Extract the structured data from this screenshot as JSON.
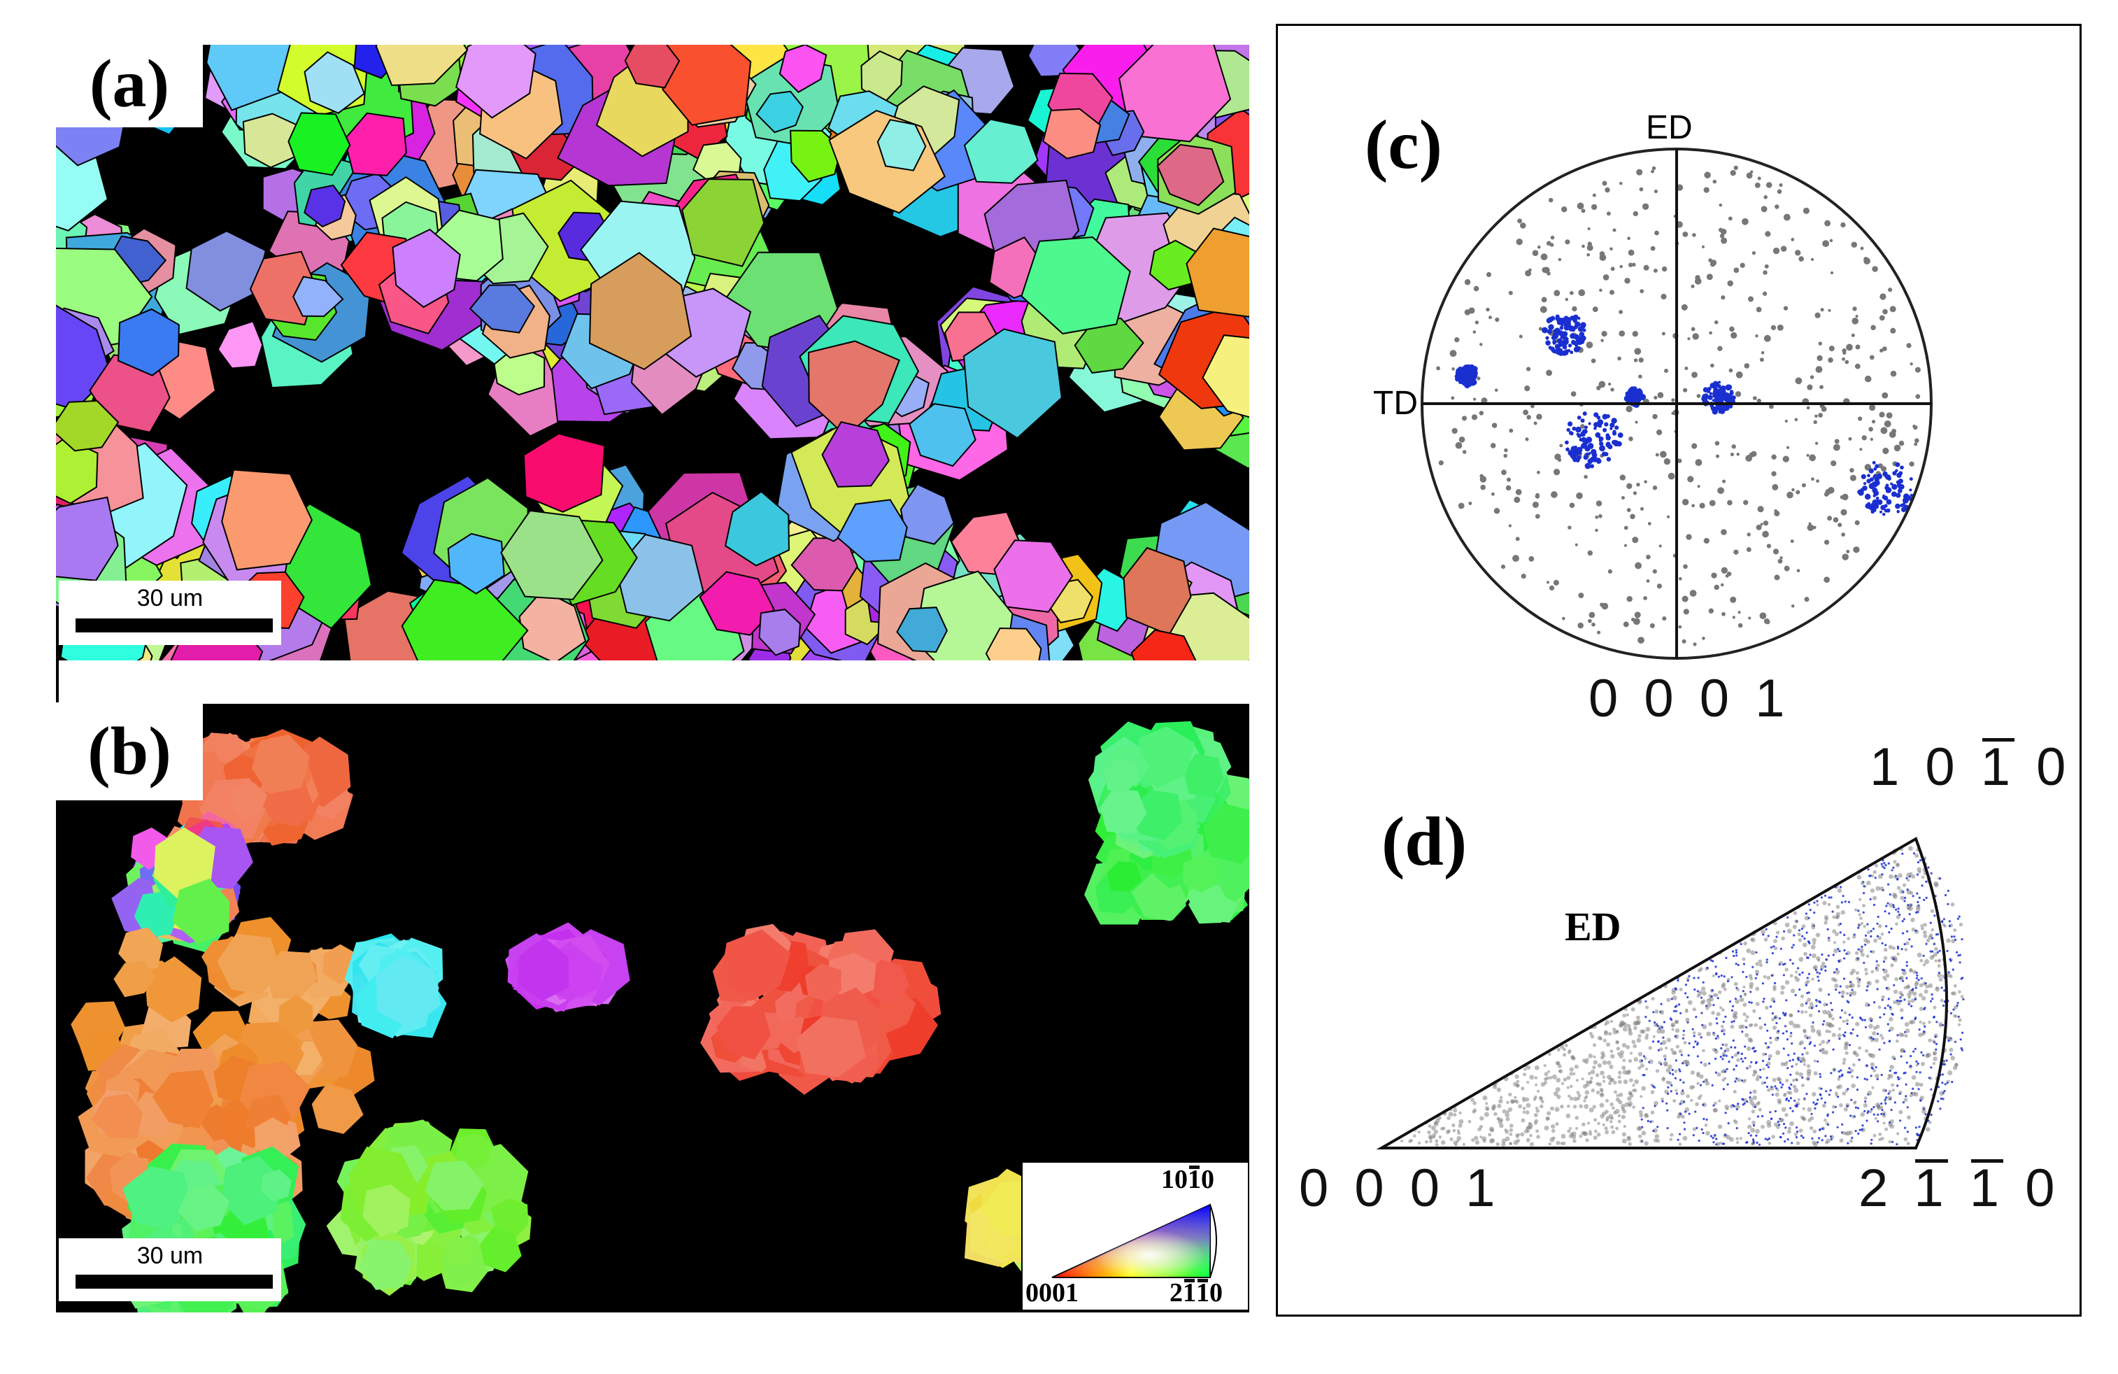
{
  "panels": {
    "a": {
      "label": "(a)",
      "scale_bar": "30 um"
    },
    "b": {
      "label": "(b)",
      "scale_bar": "30 um",
      "ipf_key": {
        "top": "10",
        "top_bar": "1",
        "top_end": "0",
        "left": "0001",
        "right_2": "2",
        "right_bar1": "1",
        "right_bar2": "1",
        "right_end": "0"
      }
    },
    "c": {
      "label": "(c)",
      "axis_top": "ED",
      "axis_left": "TD",
      "pole": "0 0 0 1"
    },
    "d": {
      "label": "(d)",
      "axis": "ED",
      "corner_left": "0 0 0 1",
      "corner_top_a": "1 0 ",
      "corner_top_bar": "1",
      "corner_top_b": " 0",
      "corner_right_a": "2 ",
      "corner_right_bar1": "1",
      "corner_right_mid": " ",
      "corner_right_bar2": "1",
      "corner_right_b": " 0"
    }
  },
  "colors": {
    "background": "#ffffff",
    "map_background": "#000000",
    "pole_gray": "#777777",
    "pole_blue": "#1a2fd0"
  }
}
